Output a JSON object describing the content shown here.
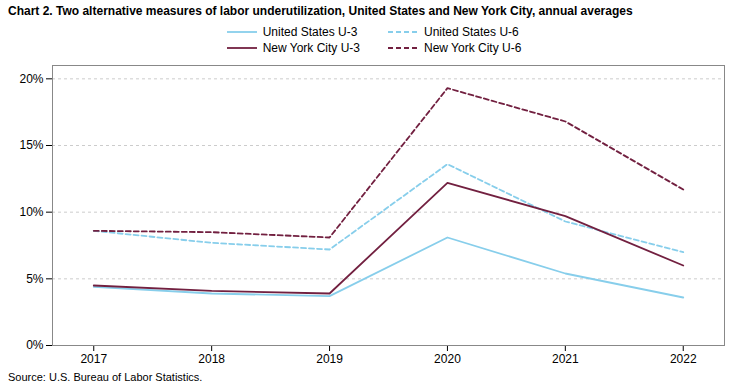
{
  "chart_data": {
    "type": "line",
    "title": "Chart 2. Two alternative measures of labor underutilization, United States and New York City, annual averages",
    "caption": "Source: U.S. Bureau of Labor Statistics.",
    "x": [
      2017,
      2018,
      2019,
      2020,
      2021,
      2022
    ],
    "series": [
      {
        "name": "United States U-3",
        "color": "#87CEEB",
        "line_style": "solid",
        "values": [
          4.4,
          3.9,
          3.7,
          8.1,
          5.4,
          3.6
        ]
      },
      {
        "name": "United States U-6",
        "color": "#87CEEB",
        "line_style": "dashed",
        "values": [
          8.6,
          7.7,
          7.2,
          13.6,
          9.3,
          7.0
        ]
      },
      {
        "name": "New York City U-3",
        "color": "#722040",
        "line_style": "solid",
        "values": [
          4.5,
          4.1,
          3.9,
          12.2,
          9.7,
          6.0
        ]
      },
      {
        "name": "New York City U-6",
        "color": "#722040",
        "line_style": "dashed",
        "values": [
          8.6,
          8.5,
          8.1,
          19.3,
          16.8,
          11.7
        ]
      }
    ],
    "xlim": [
      2016.65,
      2022.35
    ],
    "xticks": [
      2017,
      2018,
      2019,
      2020,
      2021,
      2022
    ],
    "ylim": [
      0,
      21
    ],
    "yticks": [
      {
        "value": 0,
        "label": "0%"
      },
      {
        "value": 5,
        "label": "5%"
      },
      {
        "value": 10,
        "label": "10%"
      },
      {
        "value": 15,
        "label": "15%"
      },
      {
        "value": 20,
        "label": "20%"
      }
    ],
    "grid": true,
    "legend": "top"
  }
}
